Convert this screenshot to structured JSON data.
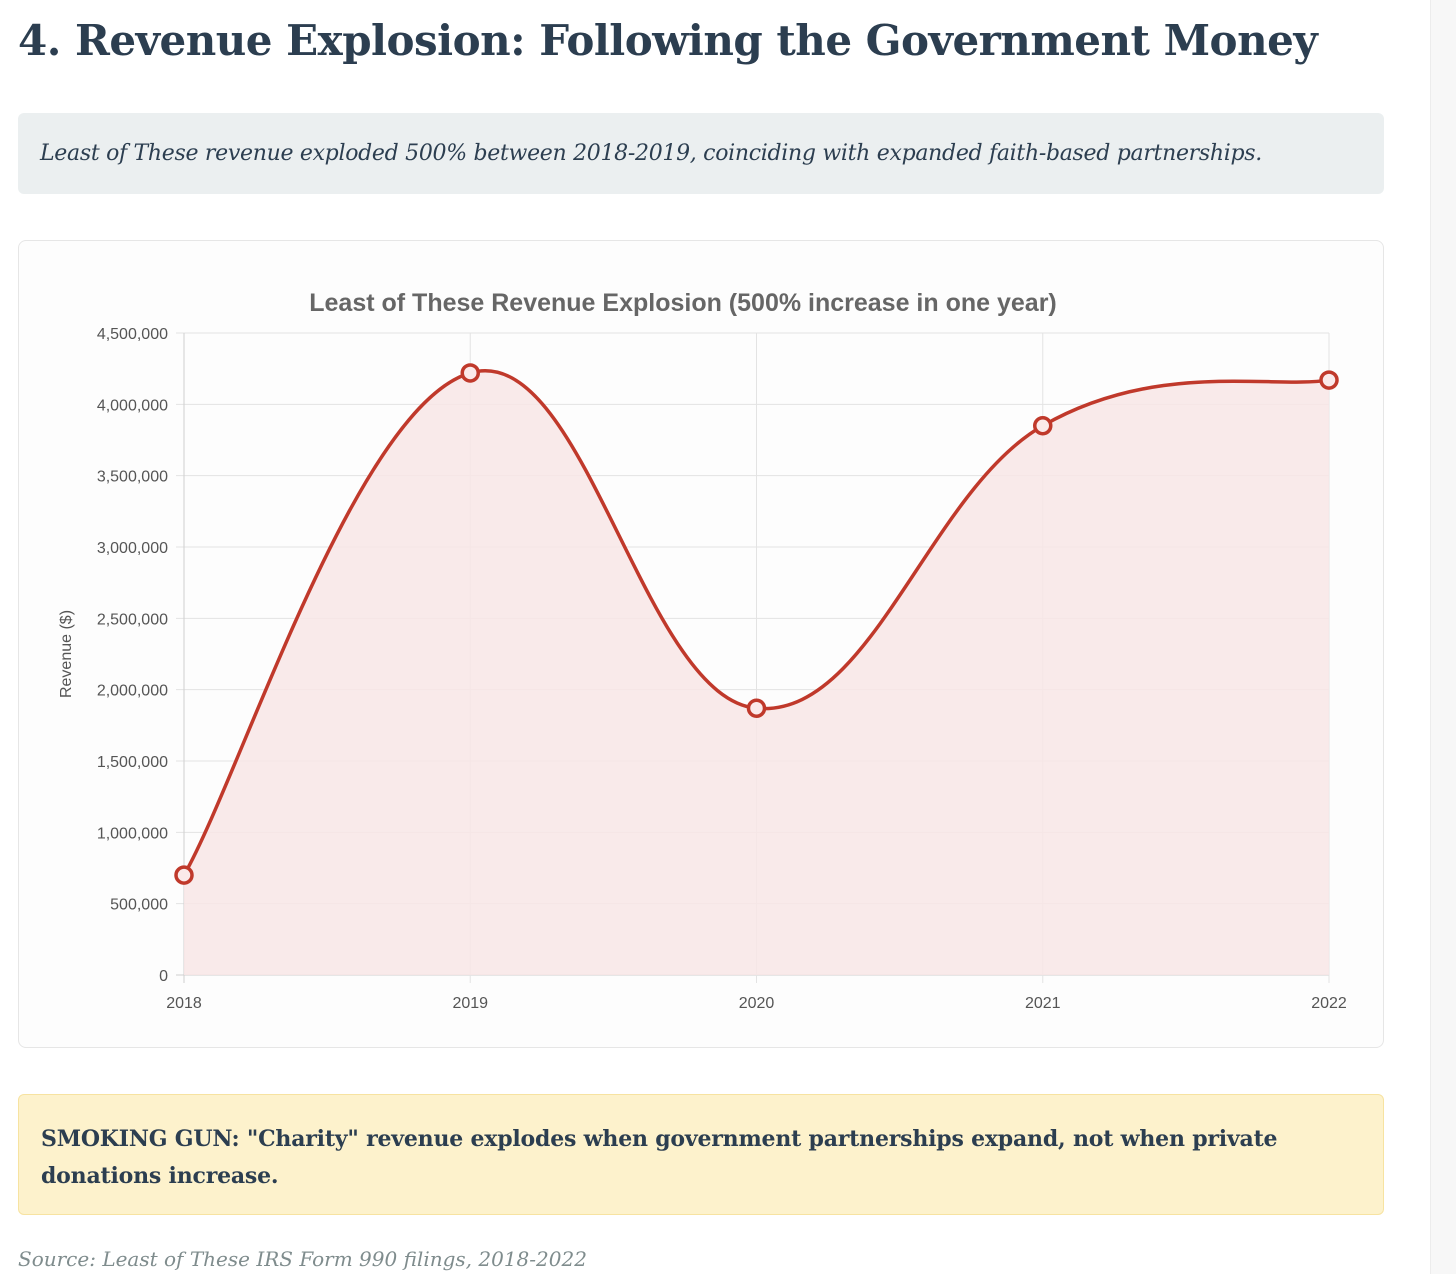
{
  "section": {
    "title": "4. Revenue Explosion: Following the Government Money",
    "summary": "Least of These revenue exploded 500% between 2018-2019, coinciding with expanded faith-based partnerships.",
    "callout": "SMOKING GUN: \"Charity\" revenue explodes when government partnerships expand, not when private donations increase.",
    "source": "Source: Least of These IRS Form 990 filings, 2018-2022"
  },
  "chart_data": {
    "type": "area",
    "title": "Least of These Revenue Explosion (500% increase in one year)",
    "xlabel": "",
    "ylabel": "Revenue ($)",
    "categories": [
      "2018",
      "2019",
      "2020",
      "2021",
      "2022"
    ],
    "series": [
      {
        "values": [
          700000,
          4220000,
          1870000,
          3850000,
          4170000
        ]
      }
    ],
    "ylim": [
      0,
      4500000
    ],
    "yticks": [
      "0",
      "500,000",
      "1,000,000",
      "1,500,000",
      "2,000,000",
      "2,500,000",
      "3,000,000",
      "3,500,000",
      "4,000,000",
      "4,500,000"
    ],
    "grid": true,
    "line_color": "#c0392b",
    "fill_color": "#f8e6e6"
  }
}
